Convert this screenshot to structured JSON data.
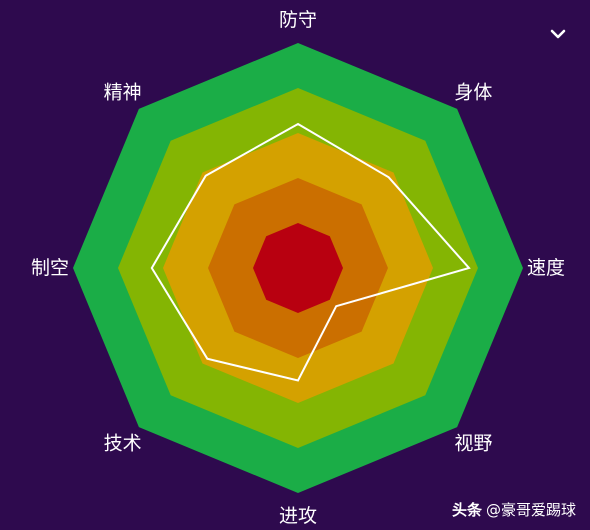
{
  "chart_data": {
    "type": "radar",
    "axes": [
      "防守",
      "身体",
      "速度",
      "视野",
      "进攻",
      "技术",
      "制空",
      "精神"
    ],
    "max": 100,
    "values": [
      64,
      57,
      76,
      24,
      50,
      57,
      65,
      58
    ],
    "band_colors": [
      "#1bad47",
      "#84b503",
      "#d4a100",
      "#cb6f00",
      "#b80010"
    ],
    "line_color": "#ffffff",
    "background": "#2e0a4e"
  },
  "ui": {
    "collapse_icon": "chevron-down-icon"
  },
  "watermark": {
    "brand": "头条",
    "handle": "@豪哥爱踢球"
  }
}
